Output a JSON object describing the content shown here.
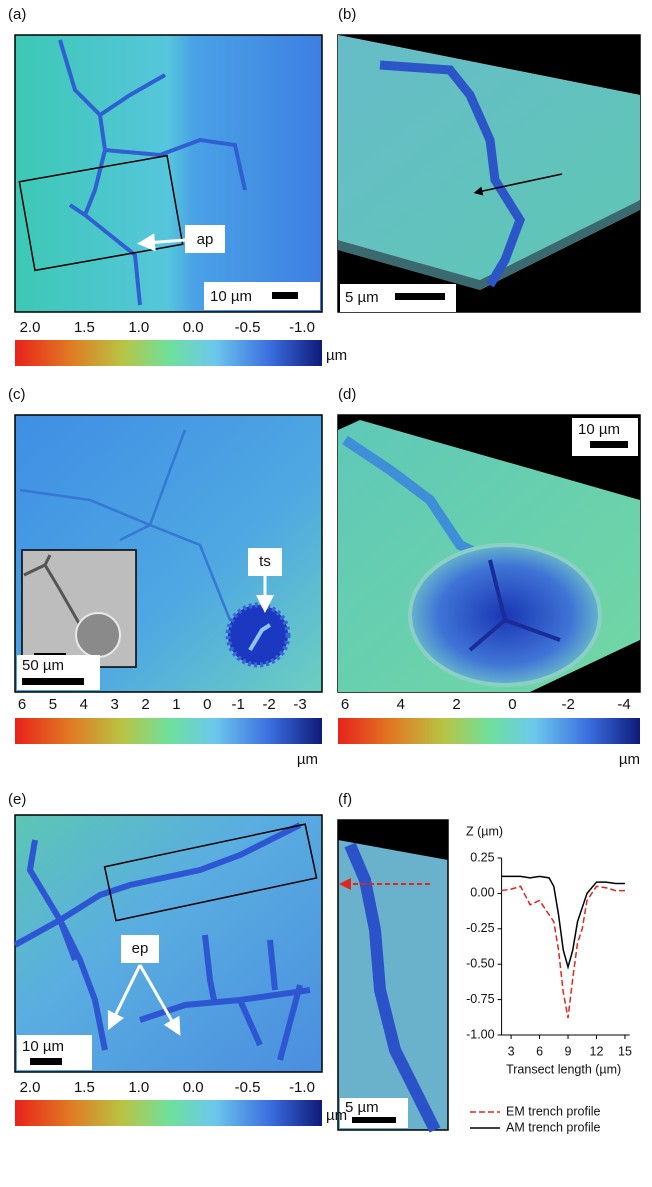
{
  "panels": [
    {
      "label": "(a)",
      "scale_bar": "10 µm",
      "annotation": "ap"
    },
    {
      "label": "(b)",
      "scale_bar": "5 µm"
    },
    {
      "label": "(c)",
      "scale_bar": "50 µm",
      "annotation": "ts"
    },
    {
      "label": "(d)",
      "scale_bar": "10 µm"
    },
    {
      "label": "(e)",
      "scale_bar": "10 µm",
      "annotation": "ep"
    },
    {
      "label": "(f)",
      "scale_bar": "5 µm"
    }
  ],
  "colorbars": [
    {
      "ticks": [
        "2.0",
        "1.5",
        "1.0",
        "0.0",
        "-0.5",
        "-1.0"
      ],
      "unit": "µm"
    },
    {
      "ticks": [
        "6",
        "5",
        "4",
        "3",
        "2",
        "1",
        "0",
        "-1",
        "-2",
        "-3"
      ],
      "unit": "µm"
    },
    {
      "ticks": [
        "6",
        "4",
        "2",
        "0",
        "-2",
        "-4"
      ],
      "unit": "µm"
    },
    {
      "ticks": [
        "2.0",
        "1.5",
        "1.0",
        "0.0",
        "-0.5",
        "-1.0"
      ],
      "unit": "µm"
    }
  ],
  "chart_data": {
    "type": "line",
    "y_label": "Z (µm)",
    "x_label": "Transect length (µm)",
    "x": [
      2,
      3,
      4,
      5,
      6,
      7,
      7.5,
      8,
      8.5,
      9,
      9.5,
      10,
      10.5,
      11,
      12,
      13,
      14,
      15
    ],
    "series": [
      {
        "name": "EM trench profile",
        "color": "#e0261c",
        "dashed": true,
        "values": [
          0.02,
          0.03,
          0.05,
          -0.08,
          -0.05,
          -0.15,
          -0.2,
          -0.4,
          -0.7,
          -0.88,
          -0.6,
          -0.35,
          -0.25,
          -0.05,
          0.05,
          0.04,
          0.02,
          0.02
        ]
      },
      {
        "name": "AM trench profile",
        "color": "#000000",
        "dashed": false,
        "values": [
          0.12,
          0.12,
          0.12,
          0.11,
          0.12,
          0.11,
          0.05,
          -0.15,
          -0.4,
          -0.52,
          -0.4,
          -0.2,
          -0.1,
          0.0,
          0.08,
          0.08,
          0.07,
          0.07
        ]
      }
    ],
    "xlim": [
      2,
      15.5
    ],
    "ylim": [
      -1.0,
      0.25
    ],
    "xticks": [
      3,
      6,
      9,
      12,
      15
    ],
    "yticks": [
      0.25,
      {
        "value": 0,
        "label": "0.00"
      },
      {
        "value": -0.25,
        "label": "-0.25"
      },
      {
        "value": -0.5,
        "label": "-0.50"
      },
      -0.75,
      {
        "value": -1,
        "label": "-1.00"
      }
    ]
  }
}
